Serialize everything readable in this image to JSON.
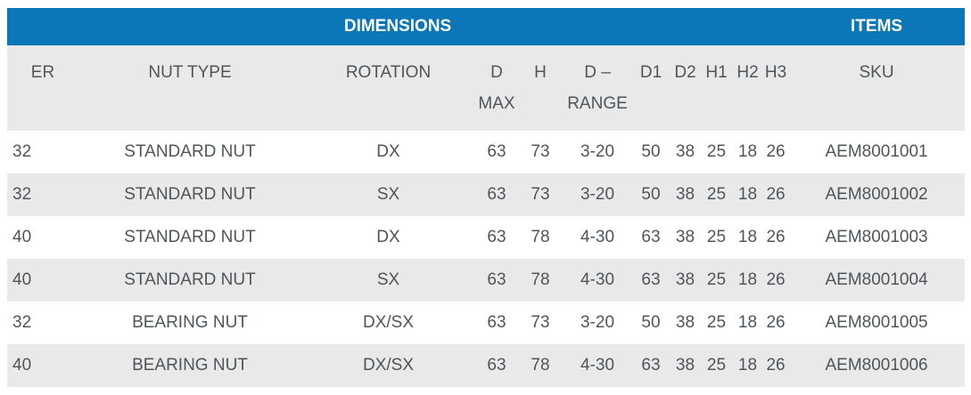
{
  "colors": {
    "header_bg": "#0b76b8",
    "header_text": "#ffffff",
    "subheader_bg": "#e9e9e9",
    "row_alt_bg": "#e9e9e9",
    "text": "#4e555b"
  },
  "table": {
    "groups": [
      {
        "label": "DIMENSIONS",
        "colspan": 11
      },
      {
        "label": "ITEMS",
        "colspan": 1
      }
    ],
    "columns": [
      {
        "key": "er",
        "label": "ER"
      },
      {
        "key": "nut-type",
        "label": "NUT TYPE"
      },
      {
        "key": "rotation",
        "label": "ROTATION"
      },
      {
        "key": "d-max",
        "label": "D\nMAX"
      },
      {
        "key": "h",
        "label": "H"
      },
      {
        "key": "d-range",
        "label": "D –\nRANGE"
      },
      {
        "key": "d1",
        "label": "D1"
      },
      {
        "key": "d2",
        "label": "D2"
      },
      {
        "key": "h1",
        "label": "H1"
      },
      {
        "key": "h2",
        "label": "H2"
      },
      {
        "key": "h3",
        "label": "H3"
      },
      {
        "key": "sku",
        "label": "SKU"
      }
    ],
    "rows": [
      [
        "32",
        "STANDARD NUT",
        "DX",
        "63",
        "73",
        "3-20",
        "50",
        "38",
        "25",
        "18",
        "26",
        "AEM8001001"
      ],
      [
        "32",
        "STANDARD NUT",
        "SX",
        "63",
        "73",
        "3-20",
        "50",
        "38",
        "25",
        "18",
        "26",
        "AEM8001002"
      ],
      [
        "40",
        "STANDARD NUT",
        "DX",
        "63",
        "78",
        "4-30",
        "63",
        "38",
        "25",
        "18",
        "26",
        "AEM8001003"
      ],
      [
        "40",
        "STANDARD NUT",
        "SX",
        "63",
        "78",
        "4-30",
        "63",
        "38",
        "25",
        "18",
        "26",
        "AEM8001004"
      ],
      [
        "32",
        "BEARING NUT",
        "DX/SX",
        "63",
        "73",
        "3-20",
        "50",
        "38",
        "25",
        "18",
        "26",
        "AEM8001005"
      ],
      [
        "40",
        "BEARING NUT",
        "DX/SX",
        "63",
        "78",
        "4-30",
        "63",
        "38",
        "25",
        "18",
        "26",
        "AEM8001006"
      ]
    ]
  }
}
